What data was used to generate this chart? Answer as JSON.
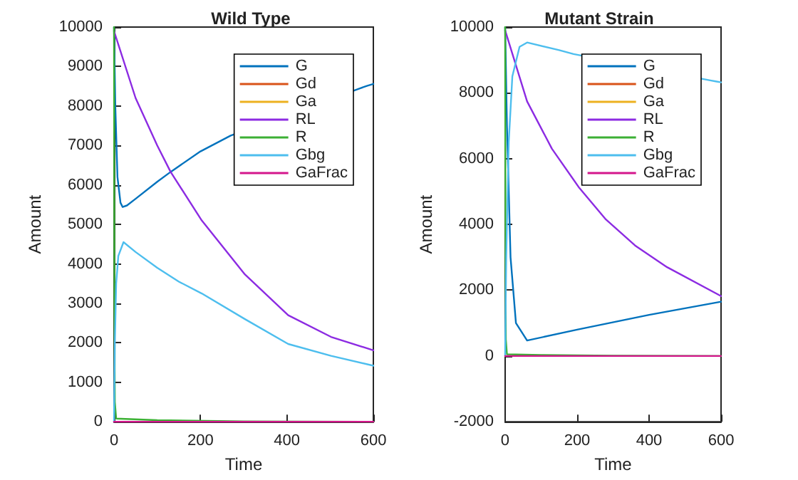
{
  "chart_data": [
    {
      "type": "line",
      "title": "Wild Type",
      "xlabel": "Time",
      "ylabel": "Amount",
      "xlim": [
        0,
        600
      ],
      "xticks": [
        0,
        200,
        400,
        600
      ],
      "ylim": [
        0,
        10000
      ],
      "yticks": [
        0,
        1000,
        2000,
        3000,
        4000,
        5000,
        6000,
        7000,
        8000,
        9000,
        10000
      ],
      "legend": "top right",
      "grid": false,
      "marker": "none",
      "line_style": "solid",
      "series": [
        {
          "name": "G",
          "color": "#0072bd",
          "x": [
            0,
            3,
            8,
            15,
            20,
            30,
            50,
            100,
            131,
            200,
            270,
            300,
            400,
            500,
            570,
            585,
            600
          ],
          "values": [
            10000,
            8000,
            6200,
            5550,
            5440,
            5480,
            5650,
            6080,
            6330,
            6850,
            7250,
            null,
            null,
            null,
            8450,
            8510,
            8560
          ]
        },
        {
          "name": "Gd",
          "color": "#d95319",
          "values": [
            null
          ]
        },
        {
          "name": "Ga",
          "color": "#edb120",
          "values": [
            null
          ]
        },
        {
          "name": "RL",
          "color": "#8c2be2",
          "x": [
            0,
            50,
            100,
            131,
            203,
            303,
            403,
            502,
            600
          ],
          "values": [
            9900,
            8200,
            7000,
            6330,
            5100,
            3730,
            2700,
            2150,
            1810
          ]
        },
        {
          "name": "R",
          "color": "#3cb034",
          "x": [
            0,
            1,
            2,
            5,
            100,
            300,
            600
          ],
          "values": [
            10000,
            3000,
            500,
            80,
            40,
            10,
            0
          ]
        },
        {
          "name": "Gbg",
          "color": "#4dbeee",
          "x": [
            0,
            2,
            5,
            10,
            22,
            50,
            100,
            150,
            203,
            303,
            403,
            502,
            600
          ],
          "values": [
            0,
            2000,
            3500,
            4200,
            4550,
            4300,
            3900,
            3550,
            3250,
            2600,
            1970,
            1670,
            1420
          ]
        },
        {
          "name": "GaFrac",
          "color": "#d4168c",
          "x": [
            0,
            600
          ],
          "values": [
            0,
            0
          ]
        }
      ]
    },
    {
      "type": "line",
      "title": "Mutant Strain",
      "xlabel": "Time",
      "ylabel": "Amount",
      "xlim": [
        0,
        600
      ],
      "xticks": [
        0,
        200,
        400,
        600
      ],
      "ylim": [
        -2000,
        10000
      ],
      "yticks": [
        -2000,
        0,
        2000,
        4000,
        6000,
        8000,
        10000
      ],
      "legend": "top right",
      "grid": false,
      "marker": "none",
      "line_style": "solid",
      "series": [
        {
          "name": "G",
          "color": "#0072bd",
          "x": [
            0,
            5,
            15,
            30,
            61,
            200,
            400,
            600
          ],
          "values": [
            10000,
            7000,
            3000,
            1000,
            470,
            800,
            1250,
            1650
          ]
        },
        {
          "name": "Gd",
          "color": "#d95319",
          "values": [
            null
          ]
        },
        {
          "name": "Ga",
          "color": "#edb120",
          "values": [
            null
          ]
        },
        {
          "name": "RL",
          "color": "#8c2be2",
          "x": [
            0,
            61,
            130,
            206,
            280,
            361,
            450,
            600
          ],
          "values": [
            9900,
            7740,
            6300,
            5110,
            4150,
            3360,
            2700,
            1820
          ]
        },
        {
          "name": "R",
          "color": "#3cb034",
          "x": [
            0,
            1,
            2,
            5,
            100,
            300,
            600
          ],
          "values": [
            10000,
            3000,
            500,
            50,
            30,
            10,
            0
          ]
        },
        {
          "name": "Gbg",
          "color": "#4dbeee",
          "x": [
            0,
            3,
            10,
            20,
            40,
            61,
            150,
            190,
            300,
            450,
            570,
            585,
            600
          ],
          "values": [
            0,
            3000,
            6500,
            8500,
            9400,
            9530,
            9300,
            9180,
            null,
            null,
            8380,
            8350,
            8320
          ]
        },
        {
          "name": "GaFrac",
          "color": "#d4168c",
          "x": [
            0,
            600
          ],
          "values": [
            0,
            0
          ]
        }
      ]
    }
  ]
}
